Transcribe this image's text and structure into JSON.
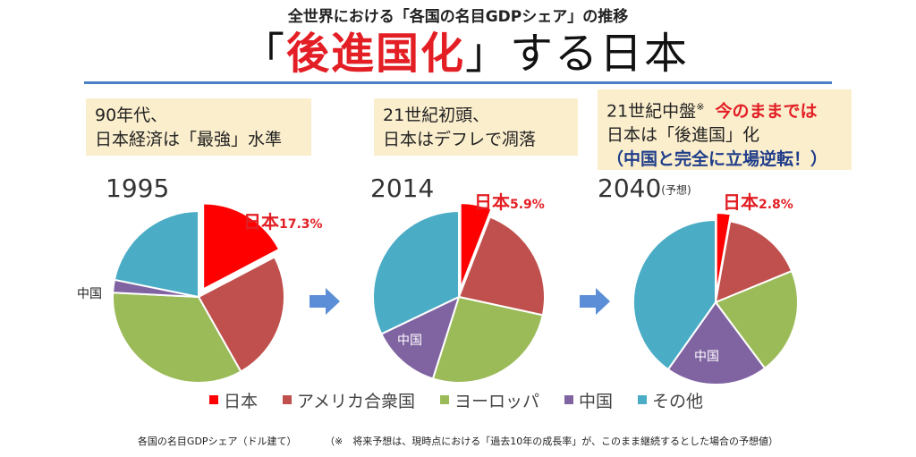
{
  "header": {
    "subtitle": "全世界における「各国の名目GDPシェア」の推移",
    "title_open": "「",
    "title_accent": "後進国化",
    "title_close": "」する日本"
  },
  "notes": [
    {
      "line1": "90年代、",
      "line2": "日本経済は「最強」水準"
    },
    {
      "line1": "21世紀初頭、",
      "line2": "日本はデフレで凋落"
    },
    {
      "line1_a": "21世紀中盤",
      "line1_mark": "※",
      "line1_red": "今のままでは",
      "line2": "日本は「後進国」化",
      "line3": "（中国と完全に立場逆転！）"
    }
  ],
  "footer": {
    "left": "各国の名目GDPシェア（ドル建て）",
    "right": "（※　将来予想は、現時点における「過去10年の成長率」が、このまま継続するとした場合の予想値）"
  },
  "chart_data": {
    "type": "pie",
    "legend_position": "bottom",
    "colors": {
      "japan": "#ff0000",
      "usa": "#c0504d",
      "europe": "#9bbb59",
      "china": "#8064a2",
      "other": "#4bacc6"
    },
    "legend": [
      {
        "key": "japan",
        "label": "日本"
      },
      {
        "key": "usa",
        "label": "アメリカ合衆国"
      },
      {
        "key": "europe",
        "label": "ヨーロッパ"
      },
      {
        "key": "china",
        "label": "中国"
      },
      {
        "key": "other",
        "label": "その他"
      }
    ],
    "pies": [
      {
        "year": "1995",
        "year_note": "",
        "japan_label": "日本",
        "japan_pct": "17.3%",
        "china_label": "中国",
        "slices": [
          {
            "key": "japan",
            "value": 17.3
          },
          {
            "key": "usa",
            "value": 24.5
          },
          {
            "key": "europe",
            "value": 34.0
          },
          {
            "key": "china",
            "value": 2.4
          },
          {
            "key": "other",
            "value": 21.8
          }
        ]
      },
      {
        "year": "2014",
        "year_note": "",
        "japan_label": "日本",
        "japan_pct": "5.9%",
        "china_label": "中国",
        "slices": [
          {
            "key": "japan",
            "value": 5.9
          },
          {
            "key": "usa",
            "value": 22.5
          },
          {
            "key": "europe",
            "value": 26.5
          },
          {
            "key": "china",
            "value": 13.0
          },
          {
            "key": "other",
            "value": 32.1
          }
        ]
      },
      {
        "year": "2040",
        "year_note": "(予想)",
        "japan_label": "日本",
        "japan_pct": "2.8%",
        "china_label": "中国",
        "slices": [
          {
            "key": "japan",
            "value": 2.8
          },
          {
            "key": "usa",
            "value": 16.0
          },
          {
            "key": "europe",
            "value": 21.0
          },
          {
            "key": "china",
            "value": 20.0
          },
          {
            "key": "other",
            "value": 40.2
          }
        ]
      }
    ]
  }
}
